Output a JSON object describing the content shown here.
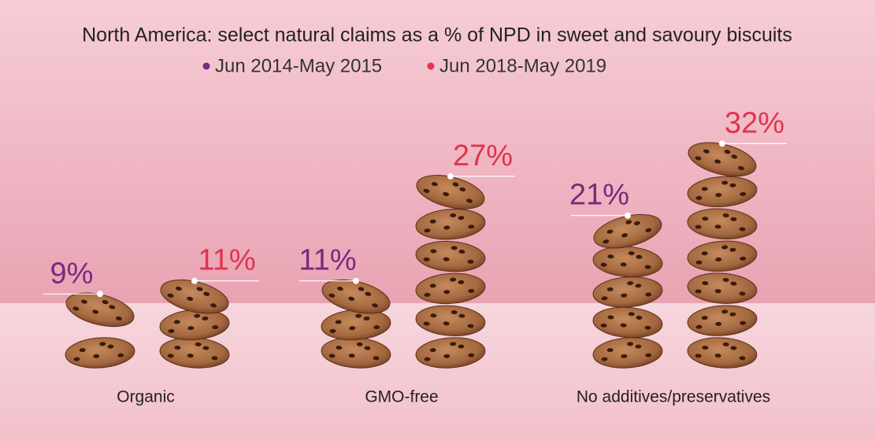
{
  "chart_data": {
    "type": "bar",
    "title": "North America: select natural claims as a % of NPD in sweet and savoury biscuits",
    "categories": [
      "Organic",
      "GMO-free",
      "No additives/preservatives"
    ],
    "series": [
      {
        "name": "Jun 2014-May 2015",
        "color": "#7a2a7c",
        "values": [
          9,
          11,
          21
        ],
        "value_labels": [
          "9%",
          "11%",
          "21%"
        ]
      },
      {
        "name": "Jun 2018-May 2019",
        "color": "#e0334f",
        "values": [
          11,
          27,
          32
        ],
        "value_labels": [
          "11%",
          "27%",
          "32%"
        ]
      }
    ]
  }
}
